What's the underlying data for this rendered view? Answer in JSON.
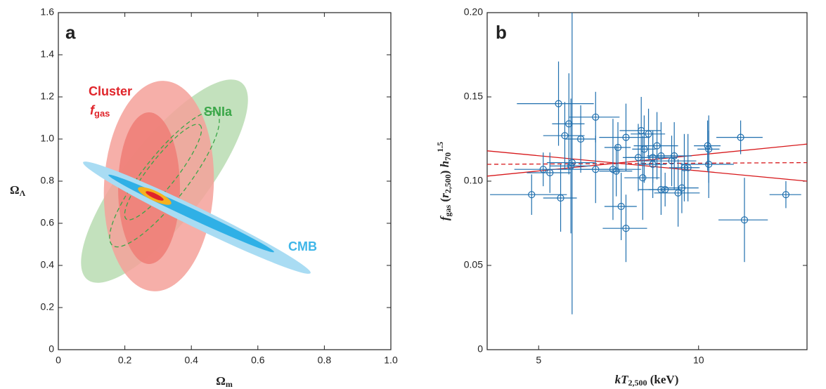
{
  "chart_data": [
    {
      "type": "contour",
      "panel_label": "a",
      "xlim": [
        0,
        1
      ],
      "ylim": [
        0,
        1.6
      ],
      "xticks": [
        0,
        0.2,
        0.4,
        0.6,
        0.8,
        {
          "value": 1,
          "label": "1.0"
        }
      ],
      "yticks": [
        0,
        0.2,
        0.4,
        0.6,
        0.8,
        {
          "value": 1,
          "label": "1.0"
        },
        1.2,
        1.4,
        1.6
      ],
      "x_label": [
        "Ω",
        "m"
      ],
      "y_label": [
        "Ω",
        "Λ"
      ],
      "annotations": [
        {
          "text": "Cluster",
          "color": "#e0252b"
        },
        {
          "text": "f",
          "sub": "gas",
          "color": "#e0252b"
        },
        {
          "text": "SNIa",
          "color": "#3aa648"
        },
        {
          "text": "CMB",
          "color": "#3fb6e8"
        }
      ]
    },
    {
      "type": "scatter",
      "panel_label": "b",
      "xscale": "log",
      "xlim": [
        4,
        16
      ],
      "ylim": [
        0,
        0.2
      ],
      "xticks": [
        5,
        10
      ],
      "yticks": [
        0,
        0.05,
        {
          "value": 0.1,
          "label": "0.10"
        },
        0.15,
        {
          "value": 0.2,
          "label": "0.20"
        }
      ],
      "x_label": [
        "kT",
        "2,500",
        " (keV)"
      ],
      "y_label": [
        "f",
        "gas",
        " (",
        "r",
        "2,500",
        ") ",
        "h",
        "70",
        "1.5"
      ],
      "color": "#1f6fae",
      "points": {
        "x": [
          4.85,
          5.5,
          5.1,
          5.25,
          5.45,
          5.6,
          5.7,
          5.75,
          5.78,
          6.0,
          6.4,
          6.4,
          6.9,
          7.0,
          7.05,
          7.15,
          7.3,
          7.3,
          7.7,
          7.8,
          7.85,
          7.9,
          8.05,
          8.2,
          8.2,
          8.35,
          8.5,
          8.5,
          8.65,
          8.9,
          9.0,
          9.15,
          9.3,
          9.4,
          9.55,
          10.4,
          10.45,
          10.45,
          12.0,
          12.2,
          14.6
        ],
        "values": [
          0.092,
          0.09,
          0.107,
          0.105,
          0.146,
          0.127,
          0.134,
          0.109,
          0.111,
          0.125,
          0.107,
          0.138,
          0.107,
          0.106,
          0.12,
          0.085,
          0.072,
          0.126,
          0.114,
          0.13,
          0.102,
          0.119,
          0.128,
          0.11,
          0.114,
          0.121,
          0.115,
          0.095,
          0.095,
          0.112,
          0.115,
          0.093,
          0.096,
          0.108,
          0.108,
          0.121,
          0.119,
          0.11,
          0.126,
          0.077,
          0.092
        ],
        "xerr": [
          0.8,
          0.4,
          0.6,
          0.5,
          0.9,
          0.5,
          0.4,
          0.5,
          0.6,
          0.4,
          0.8,
          0.7,
          0.9,
          0.5,
          0.4,
          0.5,
          0.7,
          0.8,
          0.5,
          0.7,
          0.6,
          0.4,
          0.6,
          0.5,
          0.9,
          0.8,
          0.5,
          0.8,
          0.6,
          1.0,
          0.7,
          0.9,
          0.7,
          0.6,
          0.5,
          0.6,
          0.5,
          1.2,
          1.2,
          1.3,
          1.0
        ],
        "yerr": [
          0.012,
          0.02,
          0.01,
          0.012,
          0.025,
          0.02,
          0.03,
          0.04,
          0.09,
          0.02,
          0.02,
          0.015,
          0.03,
          0.015,
          0.015,
          0.02,
          0.02,
          0.02,
          0.02,
          0.02,
          0.025,
          0.02,
          0.015,
          0.02,
          0.015,
          0.02,
          0.02,
          0.015,
          0.01,
          0.015,
          0.02,
          0.02,
          0.015,
          0.02,
          0.02,
          0.015,
          0.02,
          0.02,
          0.01,
          0.025,
          0.008
        ]
      },
      "lines": [
        {
          "x": [
            4,
            16
          ],
          "values": [
            0.118,
            0.1
          ],
          "color": "#d7191c",
          "dashed": false
        },
        {
          "x": [
            4,
            16
          ],
          "values": [
            0.103,
            0.122
          ],
          "color": "#d7191c",
          "dashed": false
        },
        {
          "x": [
            4,
            16
          ],
          "values": [
            0.11,
            0.111
          ],
          "color": "#d7191c",
          "dashed": true
        }
      ]
    }
  ]
}
